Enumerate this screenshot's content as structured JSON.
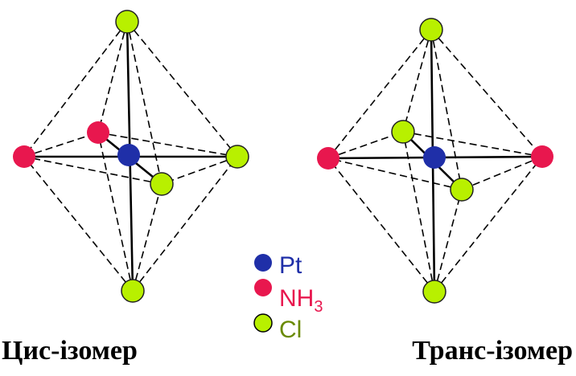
{
  "captions": {
    "cis": "Цис-ізомер",
    "trans": "Транс-ізомер"
  },
  "legend": {
    "pt": {
      "label": "Pt",
      "color": "#1f2fa8"
    },
    "nh3": {
      "label": "NH",
      "sub": "3",
      "color": "#e8174e"
    },
    "cl": {
      "label": "Cl",
      "color": "#b8f000"
    }
  },
  "colors": {
    "edge": "#000000",
    "pt": "#1f2fa8",
    "nh3": "#e8174e",
    "cl": "#b8f000"
  },
  "molecules": [
    {
      "name": "cis-isomer",
      "ligands": {
        "top": "Cl",
        "bottom": "Cl",
        "left": "NH3",
        "right": "Cl",
        "back": "NH3",
        "front": "Cl"
      }
    },
    {
      "name": "trans-isomer",
      "ligands": {
        "top": "Cl",
        "bottom": "Cl",
        "left": "NH3",
        "right": "NH3",
        "back": "Cl",
        "front": "Cl"
      }
    }
  ]
}
